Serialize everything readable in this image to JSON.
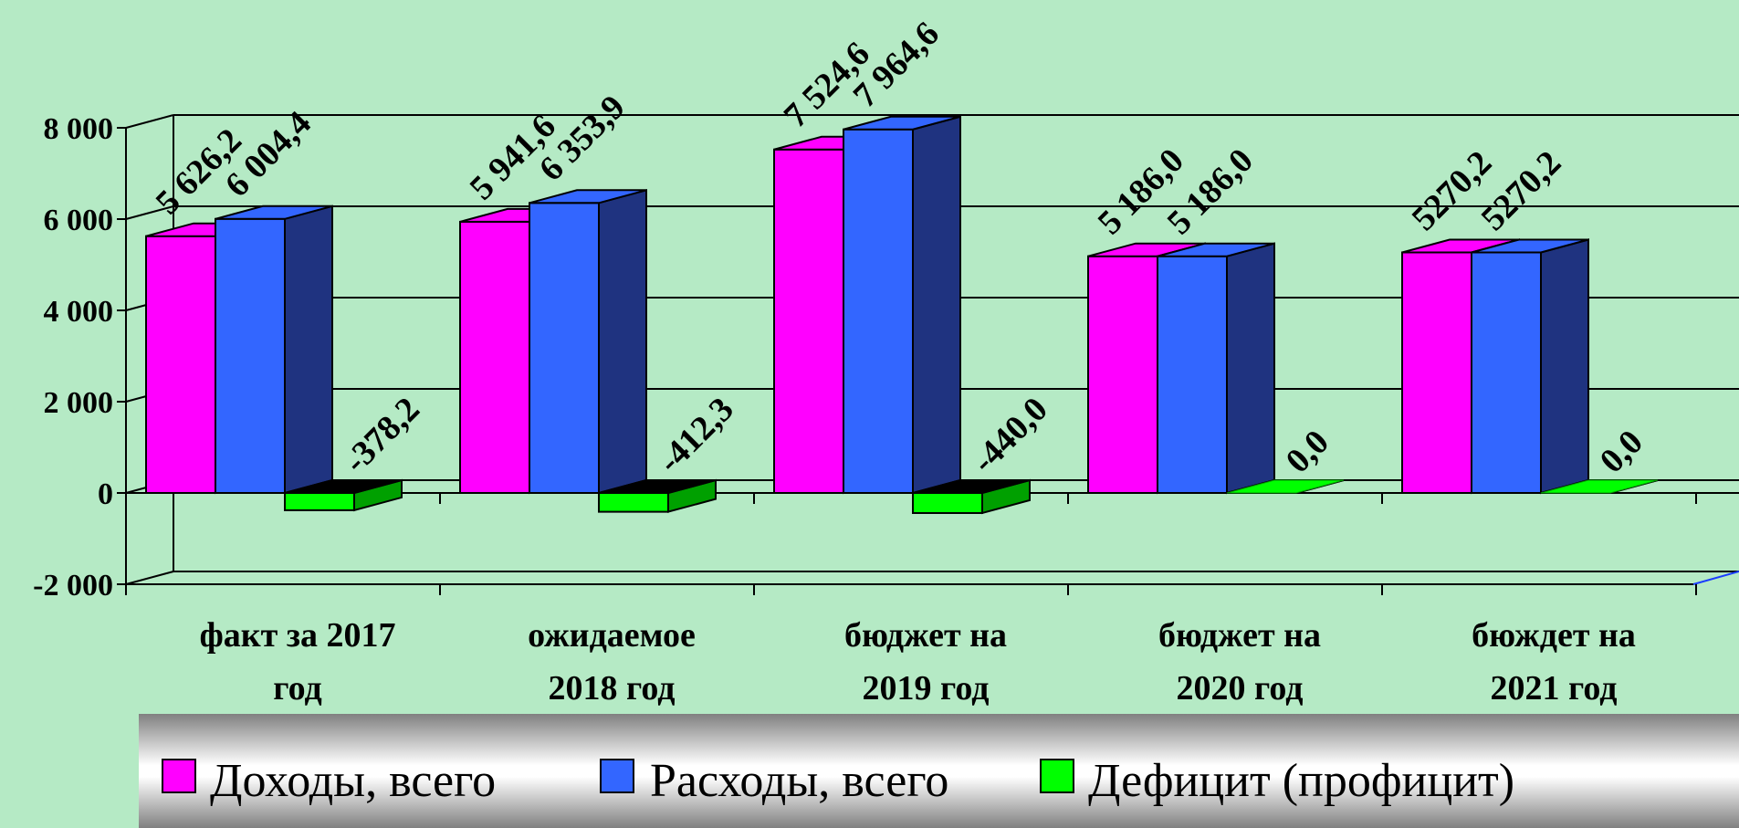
{
  "chart_data": {
    "type": "bar",
    "categories": [
      [
        "факт за 2017",
        "год"
      ],
      [
        "ожидаемое",
        "2018 год"
      ],
      [
        "бюджет на",
        "2019 год"
      ],
      [
        "бюджет на",
        "2020 год"
      ],
      [
        "бюждет на",
        "2021 год"
      ]
    ],
    "series": [
      {
        "name": "Доходы, всего",
        "values": [
          5626.2,
          5941.6,
          7524.6,
          5186.0,
          5270.2
        ],
        "labels": [
          "5 626,2",
          "5 941,6",
          "7 524,6",
          "5 186,0",
          "5270,2"
        ],
        "color": "#ff00ff",
        "side_color": "#a000a0"
      },
      {
        "name": "Расходы, всего",
        "values": [
          6004.4,
          6353.9,
          7964.6,
          5186.0,
          5270.2
        ],
        "labels": [
          "6 004,4",
          "6 353,9",
          "7 964,6",
          "5 186,0",
          "5270,2"
        ],
        "color": "#3366ff",
        "side_color": "#1f3380"
      },
      {
        "name": "Дефицит (профицит)",
        "values": [
          -378.2,
          -412.3,
          -440.0,
          0.0,
          0.0
        ],
        "labels": [
          "-378,2",
          "-412,3",
          "-440,0",
          "0,0",
          "0,0"
        ],
        "color": "#00ff00",
        "side_color": "#00a000"
      }
    ],
    "ylim": [
      -2000,
      8000
    ],
    "yticks": [
      -2000,
      0,
      2000,
      4000,
      6000,
      8000
    ],
    "ytick_labels": [
      "-2 000",
      "0",
      "2 000",
      "4 000",
      "6 000",
      "8 000"
    ],
    "grid": true,
    "legend_position": "bottom",
    "style": "3d-clustered"
  }
}
